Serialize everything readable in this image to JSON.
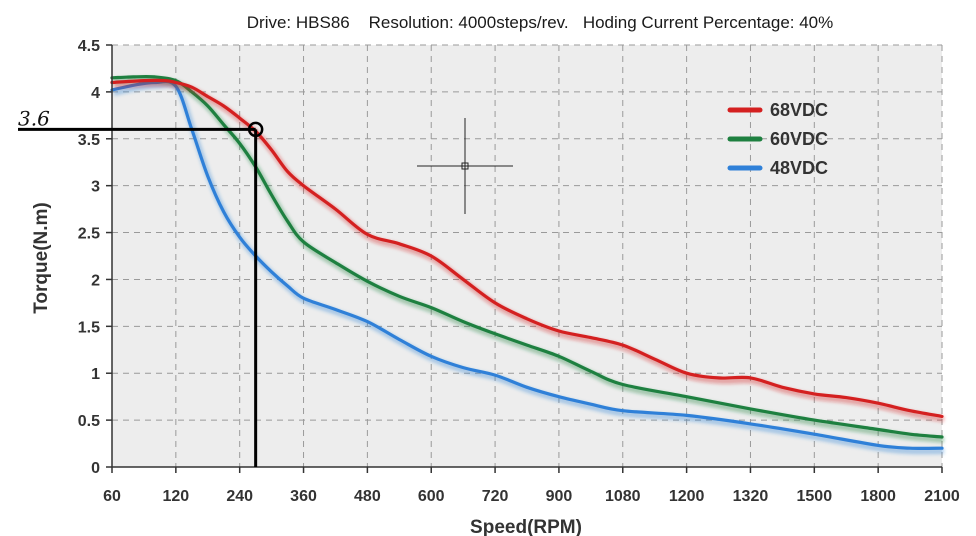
{
  "chart_data": {
    "type": "line",
    "title": "Drive: HBS86    Resolution: 4000steps/rev.   Hoding Current Percentage: 40%",
    "xlabel": "Speed(RPM)",
    "ylabel": "Torque(N.m)",
    "x_ticks": [
      "60",
      "120",
      "240",
      "360",
      "480",
      "600",
      "720",
      "900",
      "1080",
      "1200",
      "1320",
      "1500",
      "1800",
      "2100"
    ],
    "y_ticks": [
      "0",
      "0.5",
      "1",
      "1.5",
      "2",
      "2.5",
      "3",
      "3.5",
      "4",
      "4.5"
    ],
    "ylim": [
      0,
      4.5
    ],
    "grid": true,
    "legend_position": "top-right",
    "series": [
      {
        "name": "68VDC",
        "color": "#d42020",
        "x": [
          60,
          90,
          110,
          120,
          150,
          180,
          210,
          240,
          270,
          300,
          330,
          360,
          420,
          480,
          540,
          600,
          660,
          720,
          810,
          900,
          990,
          1080,
          1140,
          1200,
          1260,
          1320,
          1410,
          1500,
          1650,
          1800,
          1950,
          2100
        ],
        "y": [
          4.1,
          4.12,
          4.12,
          4.1,
          4.05,
          3.95,
          3.85,
          3.72,
          3.58,
          3.38,
          3.15,
          3.0,
          2.75,
          2.48,
          2.38,
          2.25,
          2.0,
          1.75,
          1.58,
          1.45,
          1.38,
          1.3,
          1.15,
          1.0,
          0.95,
          0.95,
          0.85,
          0.78,
          0.74,
          0.68,
          0.6,
          0.54
        ]
      },
      {
        "name": "60VDC",
        "color": "#1e8040",
        "x": [
          60,
          80,
          100,
          120,
          150,
          180,
          210,
          240,
          270,
          300,
          330,
          360,
          420,
          480,
          540,
          600,
          660,
          720,
          810,
          900,
          990,
          1080,
          1200,
          1320,
          1500,
          1800,
          1950,
          2100
        ],
        "y": [
          4.15,
          4.16,
          4.16,
          4.12,
          4.0,
          3.85,
          3.65,
          3.45,
          3.2,
          2.9,
          2.62,
          2.4,
          2.18,
          1.98,
          1.82,
          1.7,
          1.55,
          1.42,
          1.3,
          1.18,
          1.02,
          0.88,
          0.75,
          0.62,
          0.5,
          0.4,
          0.35,
          0.32
        ]
      },
      {
        "name": "48VDC",
        "color": "#2f80d8",
        "x": [
          60,
          80,
          100,
          120,
          150,
          180,
          210,
          240,
          270,
          300,
          330,
          360,
          420,
          480,
          540,
          600,
          660,
          720,
          810,
          900,
          990,
          1080,
          1200,
          1320,
          1500,
          1800,
          1950,
          2100
        ],
        "y": [
          4.02,
          4.07,
          4.1,
          4.06,
          3.6,
          3.1,
          2.72,
          2.45,
          2.25,
          2.08,
          1.93,
          1.8,
          1.68,
          1.55,
          1.36,
          1.18,
          1.06,
          0.98,
          0.85,
          0.75,
          0.67,
          0.6,
          0.55,
          0.46,
          0.35,
          0.23,
          0.2,
          0.2
        ]
      }
    ],
    "annotation": {
      "label": "3.6",
      "x": 270,
      "y": 3.6
    }
  }
}
